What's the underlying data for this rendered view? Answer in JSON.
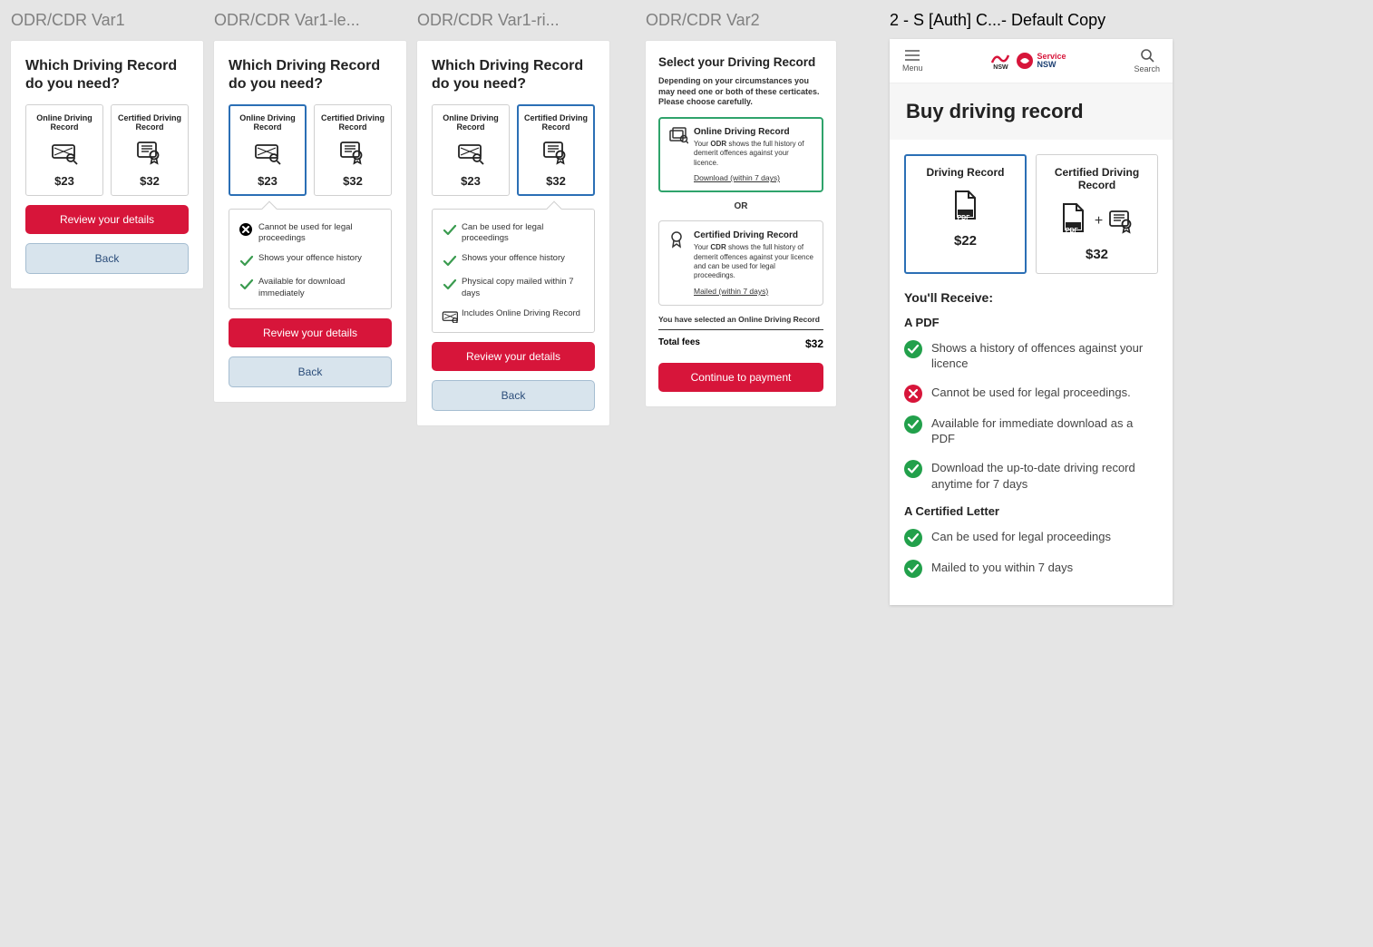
{
  "colors": {
    "background": "#e5e5e5",
    "primary_red": "#d7153a",
    "secondary_blue_bg": "#d8e4ed",
    "secondary_blue_text": "#2b4d7a",
    "selected_blue": "#2b6fb5",
    "selected_green": "#2fa36b",
    "check_green": "#22a04b",
    "text_dark": "#222222",
    "border_gray": "#d0d0d0",
    "frame_title_gray": "#808080"
  },
  "frames": {
    "var1": {
      "title": "ODR/CDR Var1"
    },
    "var1le": {
      "title": "ODR/CDR Var1-le..."
    },
    "var1ri": {
      "title": "ODR/CDR Var1-ri..."
    },
    "var2": {
      "title": "ODR/CDR Var2"
    },
    "defcopy": {
      "title": "2 - S [Auth] C...- Default Copy"
    }
  },
  "question": "Which Driving Record do you need?",
  "options": {
    "odr": {
      "label": "Online Driving Record",
      "price": "$23"
    },
    "cdr": {
      "label": "Certified Driving Record",
      "price": "$32"
    }
  },
  "buttons": {
    "review": "Review your details",
    "back": "Back",
    "continue": "Continue to payment"
  },
  "var1le_items": [
    {
      "icon": "cross",
      "text": "Cannot be used for legal proceedings"
    },
    {
      "icon": "check",
      "text": "Shows your offence history"
    },
    {
      "icon": "check",
      "text": "Available for download immediately"
    }
  ],
  "var1ri_items": [
    {
      "icon": "check",
      "text": "Can be used for legal proceedings"
    },
    {
      "icon": "check",
      "text": "Shows your offence history"
    },
    {
      "icon": "check",
      "text": "Physical copy mailed within 7 days"
    },
    {
      "icon": "odr",
      "text": "Includes Online Driving Record"
    }
  ],
  "var2": {
    "title": "Select your Driving Record",
    "subtitle": "Depending on your circumstances you may need one or both of these certicates. Please choose carefully.",
    "odr": {
      "title": "Online Driving Record",
      "desc_pre": "Your ",
      "desc_bold": "ODR",
      "desc_post": " shows the full history of demerit offences against your licence.",
      "link": "Download (within 7 days)"
    },
    "or": "OR",
    "cdr": {
      "title": "Certified Driving Record",
      "desc_pre": "Your ",
      "desc_bold": "CDR",
      "desc_post": " shows the full history of demerit offences against your licence and can be used for legal proceedings.",
      "link": "Mailed (within 7 days)"
    },
    "selected_note": "You have selected an Online Driving Record",
    "fees_label": "Total fees",
    "fees_value": "$32"
  },
  "defcopy": {
    "menu": "Menu",
    "search": "Search",
    "brand1": "NSW",
    "brand2a": "Service",
    "brand2b": "NSW",
    "heading": "Buy driving record",
    "opt1": {
      "title": "Driving Record",
      "price": "$22"
    },
    "opt2": {
      "title": "Certified Driving Record",
      "price": "$32"
    },
    "pdf_badge": "PDF",
    "receive": "You'll Receive:",
    "apdf": "A PDF",
    "cert_letter": "A Certified Letter",
    "items_pdf": [
      {
        "icon": "green",
        "text": "Shows a history of offences against your licence"
      },
      {
        "icon": "red",
        "text": "Cannot be used for legal proceedings."
      },
      {
        "icon": "green",
        "text": "Available for immediate download as a PDF"
      },
      {
        "icon": "green",
        "text": "Download the up-to-date driving record anytime for 7 days"
      }
    ],
    "items_letter": [
      {
        "icon": "green",
        "text": "Can be used for legal proceedings"
      },
      {
        "icon": "green",
        "text": "Mailed to you within 7 days"
      }
    ]
  }
}
